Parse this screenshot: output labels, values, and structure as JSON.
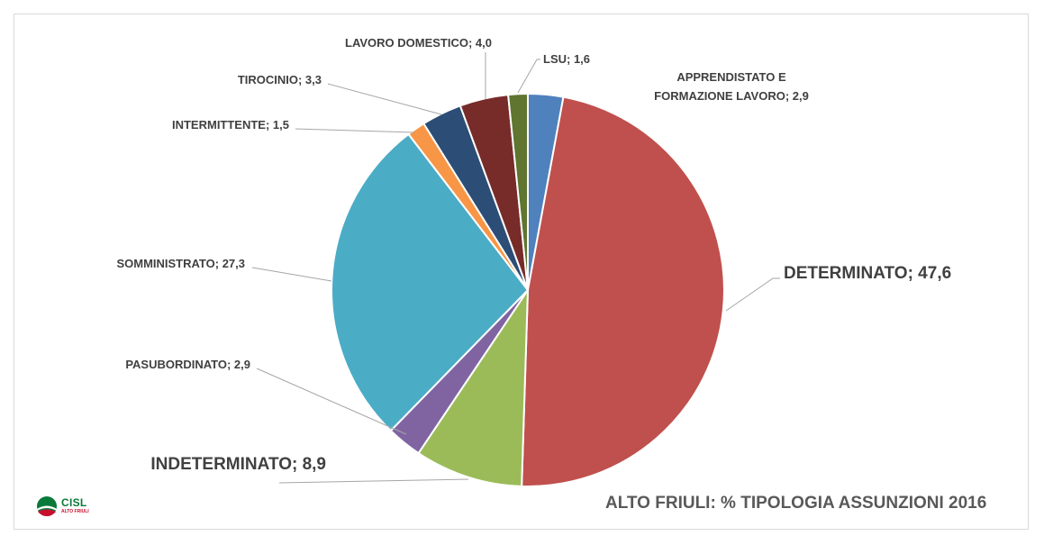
{
  "chart_data": {
    "type": "pie",
    "title": "ALTO FRIULI: % TIPOLOGIA ASSUNZIONI 2016",
    "slices": [
      {
        "label": "APPRENDISTATO E FORMAZIONE LAVORO",
        "label_lines": [
          "APPRENDISTATO E",
          "FORMAZIONE LAVORO; 2,9"
        ],
        "value": 2.9,
        "value_text": "2,9",
        "color": "#4f81bd"
      },
      {
        "label": "DETERMINATO",
        "label_lines": [
          "DETERMINATO; 47,6"
        ],
        "value": 47.6,
        "value_text": "47,6",
        "color": "#c0504d"
      },
      {
        "label": "INDETERMINATO",
        "label_lines": [
          "INDETERMINATO; 8,9"
        ],
        "value": 8.9,
        "value_text": "8,9",
        "color": "#9bbb59"
      },
      {
        "label": "PASUBORDINATO",
        "label_lines": [
          "PASUBORDINATO; 2,9"
        ],
        "value": 2.9,
        "value_text": "2,9",
        "color": "#8064a2"
      },
      {
        "label": "SOMMINISTRATO",
        "label_lines": [
          "SOMMINISTRATO; 27,3"
        ],
        "value": 27.3,
        "value_text": "27,3",
        "color": "#4bacc6"
      },
      {
        "label": "INTERMITTENTE",
        "label_lines": [
          "INTERMITTENTE; 1,5"
        ],
        "value": 1.5,
        "value_text": "1,5",
        "color": "#f79646"
      },
      {
        "label": "TIROCINIO",
        "label_lines": [
          "TIROCINIO; 3,3"
        ],
        "value": 3.3,
        "value_text": "3,3",
        "color": "#2c4d75"
      },
      {
        "label": "LAVORO DOMESTICO",
        "label_lines": [
          "LAVORO DOMESTICO; 4,0"
        ],
        "value": 4.0,
        "value_text": "4,0",
        "color": "#772c2a"
      },
      {
        "label": "LSU",
        "label_lines": [
          "LSU; 1,6"
        ],
        "value": 1.6,
        "value_text": "1,6",
        "color": "#5f7530"
      }
    ],
    "start": "top",
    "direction": "clockwise",
    "legend": "none",
    "data_labels": "outside with leader lines"
  },
  "logo": {
    "text": "CISL",
    "subtext": "ALTO FRIULI",
    "colors": {
      "green": "#0a7a3a",
      "red": "#c8102e"
    }
  }
}
